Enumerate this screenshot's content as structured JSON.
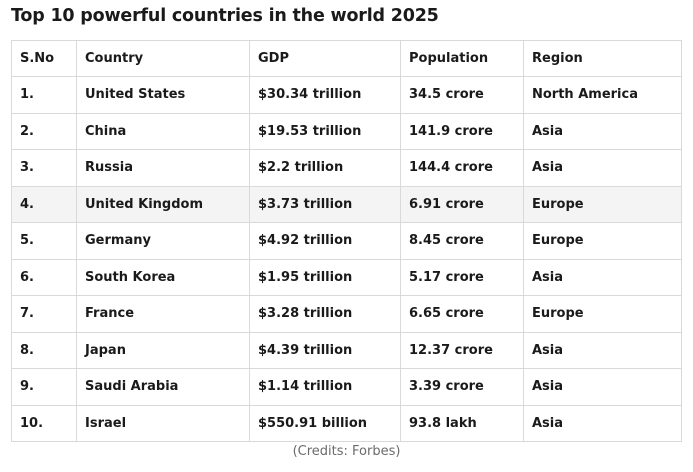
{
  "title": "Top 10 powerful countries in the world 2025",
  "table": {
    "headers": [
      "S.No",
      "Country",
      "GDP",
      "Population",
      "Region"
    ],
    "rows": [
      {
        "sno": "1.",
        "country": "United States",
        "gdp": "$30.34 trillion",
        "population": "34.5 crore",
        "region": "North America"
      },
      {
        "sno": "2.",
        "country": "China",
        "gdp": "$19.53 trillion",
        "population": "141.9 crore",
        "region": "Asia"
      },
      {
        "sno": "3.",
        "country": "Russia",
        "gdp": "$2.2 trillion",
        "population": "144.4 crore",
        "region": "Asia"
      },
      {
        "sno": "4.",
        "country": "United Kingdom",
        "gdp": "$3.73 trillion",
        "population": "6.91 crore",
        "region": "Europe"
      },
      {
        "sno": "5.",
        "country": "Germany",
        "gdp": "$4.92 trillion",
        "population": "8.45 crore",
        "region": "Europe"
      },
      {
        "sno": "6.",
        "country": "South Korea",
        "gdp": "$1.95 trillion",
        "population": "5.17 crore",
        "region": "Asia"
      },
      {
        "sno": "7.",
        "country": "France",
        "gdp": "$3.28 trillion",
        "population": "6.65 crore",
        "region": "Europe"
      },
      {
        "sno": "8.",
        "country": "Japan",
        "gdp": "$4.39 trillion",
        "population": "12.37 crore",
        "region": "Asia"
      },
      {
        "sno": "9.",
        "country": "Saudi Arabia",
        "gdp": "$1.14 trillion",
        "population": "3.39 crore",
        "region": "Asia"
      },
      {
        "sno": "10.",
        "country": "Israel",
        "gdp": "$550.91 billion",
        "population": "93.8 lakh",
        "region": "Asia"
      }
    ]
  },
  "credits": "(Credits: Forbes)",
  "colors": {
    "border": "#d9d9d9",
    "highlight_row": "#f4f4f4",
    "text": "#1a1a1a",
    "credits_text": "#6b6b6b"
  }
}
